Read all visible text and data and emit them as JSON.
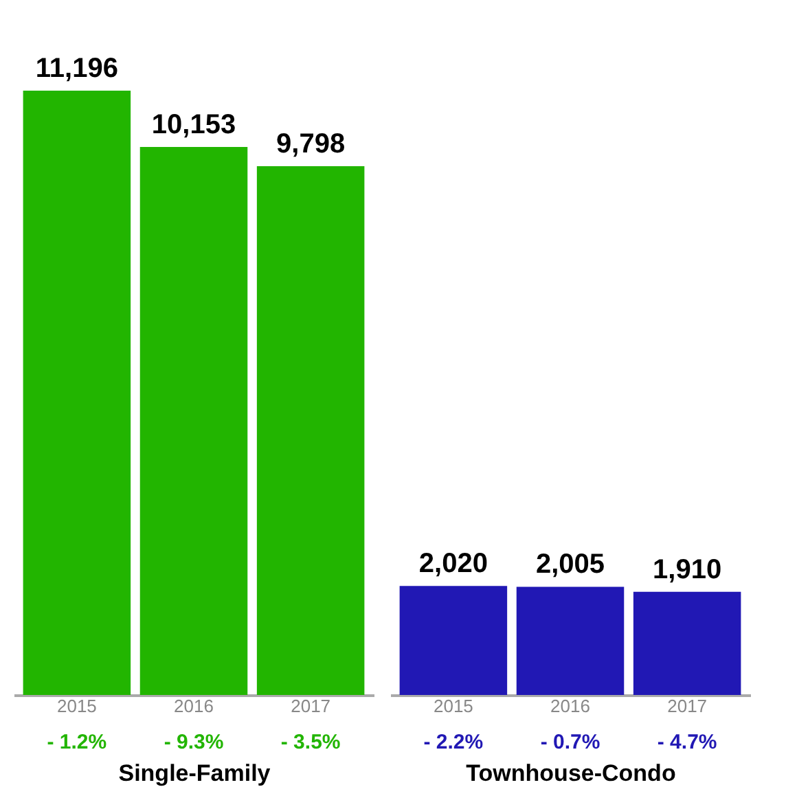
{
  "chart_data": [
    {
      "type": "bar",
      "xlabel": "Single-Family",
      "categories": [
        "2015",
        "2016",
        "2017"
      ],
      "values": [
        11196,
        10153,
        9798
      ],
      "color": "#22b500",
      "value_labels": [
        "11,196",
        "10,153",
        "9,798"
      ],
      "annotations": [
        "- 1.2%",
        "- 9.3%",
        "- 3.5%"
      ]
    },
    {
      "type": "bar",
      "xlabel": "Townhouse-Condo",
      "categories": [
        "2015",
        "2016",
        "2017"
      ],
      "values": [
        2020,
        2005,
        1910
      ],
      "color": "#2118b4",
      "value_labels": [
        "2,020",
        "2,005",
        "1,910"
      ],
      "annotations": [
        "- 2.2%",
        "- 0.7%",
        "- 4.7%"
      ]
    }
  ]
}
